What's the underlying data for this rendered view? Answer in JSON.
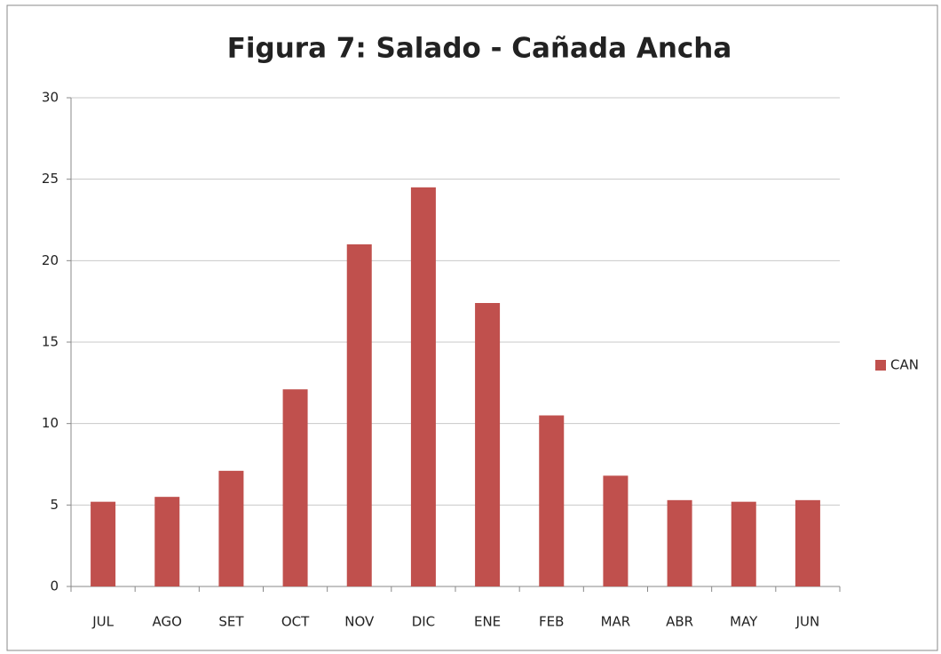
{
  "chart_data": {
    "type": "bar",
    "title": "Figura 7: Salado - Cañada Ancha",
    "categories": [
      "JUL",
      "AGO",
      "SET",
      "OCT",
      "NOV",
      "DIC",
      "ENE",
      "FEB",
      "MAR",
      "ABR",
      "MAY",
      "JUN"
    ],
    "series": [
      {
        "name": "CAN",
        "color": "#c0504d",
        "values": [
          5.2,
          5.5,
          7.1,
          12.1,
          21,
          24.5,
          17.4,
          10.5,
          6.8,
          5.3,
          5.2,
          5.3
        ]
      }
    ],
    "ylim": [
      0,
      30
    ],
    "yticks": [
      0,
      5,
      10,
      15,
      20,
      25,
      30
    ],
    "grid": true,
    "legend": "right"
  }
}
